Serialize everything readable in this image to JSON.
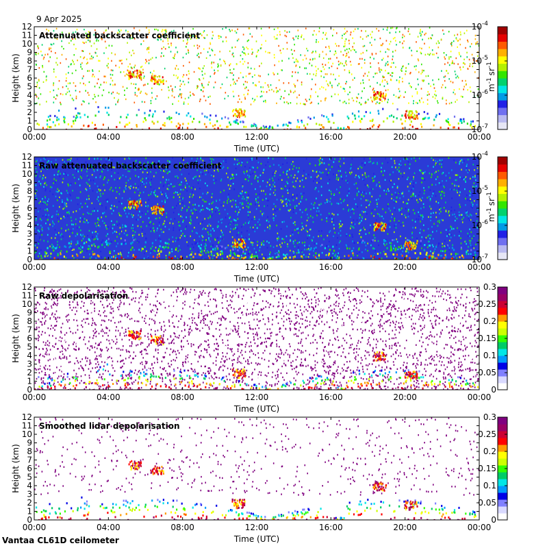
{
  "date_label": "9 Apr 2025",
  "footer_label": "Vantaa CL61D ceilometer",
  "chart_data": [
    {
      "type": "heatmap",
      "title": "Attenuated backscatter coefficient",
      "xlabel": "Time (UTC)",
      "ylabel": "Height (km)",
      "x_ticks": [
        "00:00",
        "04:00",
        "08:00",
        "12:00",
        "16:00",
        "20:00",
        "00:00"
      ],
      "y_ticks": [
        "0",
        "1",
        "2",
        "3",
        "4",
        "5",
        "6",
        "7",
        "8",
        "9",
        "10",
        "11",
        "12"
      ],
      "ylim": [
        0,
        12
      ],
      "xlim_hours": [
        0,
        24
      ],
      "colorbar": {
        "scale": "log",
        "ticks": [
          "10",
          "10",
          "10",
          "10"
        ],
        "exponents": [
          "-7",
          "-6",
          "-5",
          "-4"
        ],
        "label": "m",
        "label_exp": "-1",
        "label2": "sr",
        "label2_exp": "-1"
      }
    },
    {
      "type": "heatmap",
      "title": "Raw attenuated backscatter coefficient",
      "xlabel": "Time (UTC)",
      "ylabel": "Height (km)",
      "x_ticks": [
        "00:00",
        "04:00",
        "08:00",
        "12:00",
        "16:00",
        "20:00",
        "00:00"
      ],
      "y_ticks": [
        "0",
        "1",
        "2",
        "3",
        "4",
        "5",
        "6",
        "7",
        "8",
        "9",
        "10",
        "11",
        "12"
      ],
      "ylim": [
        0,
        12
      ],
      "xlim_hours": [
        0,
        24
      ],
      "colorbar": {
        "scale": "log",
        "ticks": [
          "10",
          "10",
          "10",
          "10"
        ],
        "exponents": [
          "-7",
          "-6",
          "-5",
          "-4"
        ],
        "label": "m",
        "label_exp": "-1",
        "label2": "sr",
        "label2_exp": "-1"
      }
    },
    {
      "type": "heatmap",
      "title": "Raw depolarisation",
      "xlabel": "Time (UTC)",
      "ylabel": "Height (km)",
      "x_ticks": [
        "00:00",
        "04:00",
        "08:00",
        "12:00",
        "16:00",
        "20:00",
        "00:00"
      ],
      "y_ticks": [
        "0",
        "1",
        "2",
        "3",
        "4",
        "5",
        "6",
        "7",
        "8",
        "9",
        "10",
        "11",
        "12"
      ],
      "ylim": [
        0,
        12
      ],
      "xlim_hours": [
        0,
        24
      ],
      "colorbar": {
        "scale": "linear",
        "ticks": [
          "0",
          "0.05",
          "0.1",
          "0.15",
          "0.2",
          "0.25",
          "0.3"
        ]
      }
    },
    {
      "type": "heatmap",
      "title": "Smoothed lidar depolarisation",
      "xlabel": "Time (UTC)",
      "ylabel": "Height (km)",
      "x_ticks": [
        "00:00",
        "04:00",
        "08:00",
        "12:00",
        "16:00",
        "20:00",
        "00:00"
      ],
      "y_ticks": [
        "0",
        "1",
        "2",
        "3",
        "4",
        "5",
        "6",
        "7",
        "8",
        "9",
        "10",
        "11",
        "12"
      ],
      "ylim": [
        0,
        12
      ],
      "xlim_hours": [
        0,
        24
      ],
      "colorbar": {
        "scale": "linear",
        "ticks": [
          "0",
          "0.05",
          "0.1",
          "0.15",
          "0.2",
          "0.25",
          "0.3"
        ]
      }
    }
  ]
}
